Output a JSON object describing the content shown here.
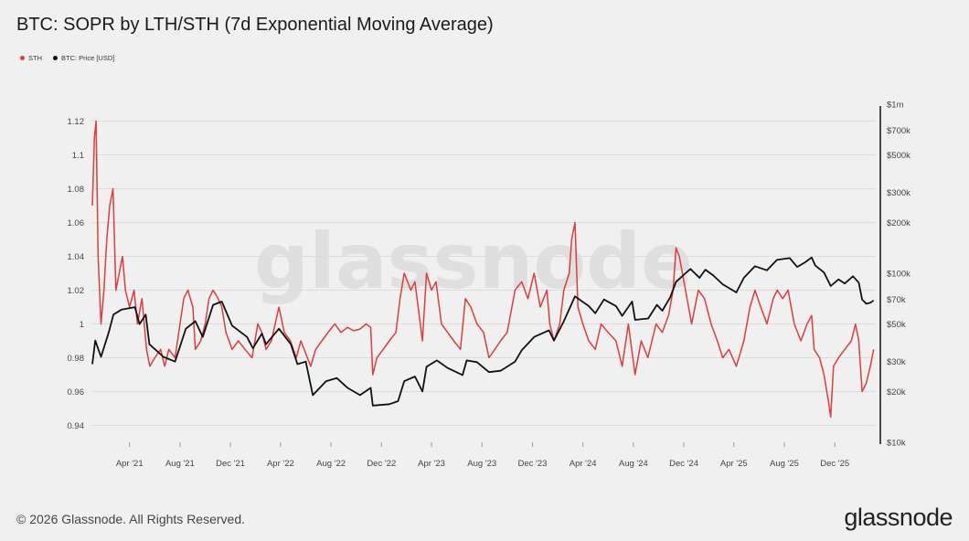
{
  "title": "BTC: SOPR by LTH/STH (7d Exponential Moving Average)",
  "legend": {
    "sth": "STH",
    "price": "BTC: Price [USD]"
  },
  "colors": {
    "sth": "#e03c3c",
    "price": "#111111",
    "grid": "#dcdcdc",
    "background": "#f0f0f0"
  },
  "watermark": "glassnode",
  "footer": "© 2026 Glassnode. All Rights Reserved.",
  "brand": "glassnode",
  "chart_data": {
    "type": "line",
    "y_left": {
      "ticks": [
        "0.94",
        "0.96",
        "0.98",
        "1",
        "1.02",
        "1.04",
        "1.06",
        "1.08",
        "1.1",
        "1.12"
      ],
      "range": [
        0.93,
        1.13
      ]
    },
    "y_right": {
      "scale": "log",
      "ticks": [
        {
          "value": 1000000,
          "label": "$1m"
        },
        {
          "value": 700000,
          "label": "$700k"
        },
        {
          "value": 500000,
          "label": "$500k"
        },
        {
          "value": 300000,
          "label": "$300k"
        },
        {
          "value": 200000,
          "label": "$200k"
        },
        {
          "value": 100000,
          "label": "$100k"
        },
        {
          "value": 70000,
          "label": "$70k"
        },
        {
          "value": 50000,
          "label": "$50k"
        },
        {
          "value": 30000,
          "label": "$30k"
        },
        {
          "value": 20000,
          "label": "$20k"
        },
        {
          "value": 10000,
          "label": "$10k"
        }
      ],
      "range": [
        10000,
        1000000
      ]
    },
    "x": {
      "range": [
        "2021-01-01",
        "2026-03-10"
      ],
      "ticks": [
        {
          "date": "2021-04-01",
          "label": "Apr '21"
        },
        {
          "date": "2021-08-01",
          "label": "Aug '21"
        },
        {
          "date": "2021-12-01",
          "label": "Dec '21"
        },
        {
          "date": "2022-04-01",
          "label": "Apr '22"
        },
        {
          "date": "2022-08-01",
          "label": "Aug '22"
        },
        {
          "date": "2022-12-01",
          "label": "Dec '22"
        },
        {
          "date": "2023-04-01",
          "label": "Apr '23"
        },
        {
          "date": "2023-08-01",
          "label": "Aug '23"
        },
        {
          "date": "2023-12-01",
          "label": "Dec '23"
        },
        {
          "date": "2024-04-01",
          "label": "Apr '24"
        },
        {
          "date": "2024-08-01",
          "label": "Aug '24"
        },
        {
          "date": "2024-12-01",
          "label": "Dec '24"
        },
        {
          "date": "2025-04-01",
          "label": "Apr '25"
        },
        {
          "date": "2025-08-01",
          "label": "Aug '25"
        },
        {
          "date": "2025-12-01",
          "label": "Dec '25"
        }
      ]
    },
    "series": [
      {
        "name": "STH",
        "axis": "left",
        "points": [
          [
            "2021-01-01",
            1.07
          ],
          [
            "2021-01-06",
            1.11
          ],
          [
            "2021-01-10",
            1.12
          ],
          [
            "2021-01-15",
            1.04
          ],
          [
            "2021-01-22",
            1.0
          ],
          [
            "2021-01-29",
            1.02
          ],
          [
            "2021-02-05",
            1.05
          ],
          [
            "2021-02-12",
            1.07
          ],
          [
            "2021-02-20",
            1.08
          ],
          [
            "2021-02-27",
            1.02
          ],
          [
            "2021-03-07",
            1.03
          ],
          [
            "2021-03-15",
            1.04
          ],
          [
            "2021-03-22",
            1.02
          ],
          [
            "2021-04-01",
            1.01
          ],
          [
            "2021-04-12",
            1.02
          ],
          [
            "2021-04-20",
            1.0
          ],
          [
            "2021-05-01",
            1.015
          ],
          [
            "2021-05-12",
            0.985
          ],
          [
            "2021-05-20",
            0.975
          ],
          [
            "2021-06-01",
            0.98
          ],
          [
            "2021-06-15",
            0.985
          ],
          [
            "2021-06-25",
            0.975
          ],
          [
            "2021-07-05",
            0.985
          ],
          [
            "2021-07-20",
            0.98
          ],
          [
            "2021-08-01",
            1.0
          ],
          [
            "2021-08-10",
            1.015
          ],
          [
            "2021-08-20",
            1.02
          ],
          [
            "2021-09-01",
            1.01
          ],
          [
            "2021-09-07",
            0.985
          ],
          [
            "2021-09-20",
            0.99
          ],
          [
            "2021-10-01",
            1.0
          ],
          [
            "2021-10-10",
            1.015
          ],
          [
            "2021-10-20",
            1.02
          ],
          [
            "2021-11-01",
            1.015
          ],
          [
            "2021-11-10",
            1.01
          ],
          [
            "2021-11-20",
            0.995
          ],
          [
            "2021-12-05",
            0.985
          ],
          [
            "2021-12-20",
            0.99
          ],
          [
            "2022-01-05",
            0.985
          ],
          [
            "2022-01-22",
            0.98
          ],
          [
            "2022-02-05",
            1.0
          ],
          [
            "2022-02-15",
            0.995
          ],
          [
            "2022-02-25",
            0.985
          ],
          [
            "2022-03-10",
            0.99
          ],
          [
            "2022-03-28",
            1.01
          ],
          [
            "2022-04-10",
            0.995
          ],
          [
            "2022-04-25",
            0.99
          ],
          [
            "2022-05-09",
            0.98
          ],
          [
            "2022-05-20",
            0.99
          ],
          [
            "2022-06-13",
            0.975
          ],
          [
            "2022-06-25",
            0.985
          ],
          [
            "2022-07-10",
            0.99
          ],
          [
            "2022-07-25",
            0.995
          ],
          [
            "2022-08-10",
            1.0
          ],
          [
            "2022-08-25",
            0.995
          ],
          [
            "2022-09-10",
            0.998
          ],
          [
            "2022-09-25",
            0.996
          ],
          [
            "2022-10-10",
            0.997
          ],
          [
            "2022-10-25",
            1.0
          ],
          [
            "2022-11-05",
            0.998
          ],
          [
            "2022-11-10",
            0.97
          ],
          [
            "2022-11-20",
            0.98
          ],
          [
            "2022-12-05",
            0.985
          ],
          [
            "2022-12-20",
            0.99
          ],
          [
            "2023-01-05",
            0.995
          ],
          [
            "2023-01-15",
            1.015
          ],
          [
            "2023-01-25",
            1.03
          ],
          [
            "2023-02-10",
            1.02
          ],
          [
            "2023-02-20",
            1.025
          ],
          [
            "2023-03-10",
            0.99
          ],
          [
            "2023-03-20",
            1.03
          ],
          [
            "2023-04-01",
            1.02
          ],
          [
            "2023-04-12",
            1.025
          ],
          [
            "2023-04-25",
            1.0
          ],
          [
            "2023-05-10",
            0.995
          ],
          [
            "2023-05-25",
            0.99
          ],
          [
            "2023-06-10",
            0.985
          ],
          [
            "2023-06-22",
            1.015
          ],
          [
            "2023-07-05",
            1.01
          ],
          [
            "2023-07-20",
            1.0
          ],
          [
            "2023-08-05",
            0.995
          ],
          [
            "2023-08-18",
            0.98
          ],
          [
            "2023-09-01",
            0.985
          ],
          [
            "2023-09-15",
            0.99
          ],
          [
            "2023-10-01",
            0.995
          ],
          [
            "2023-10-20",
            1.02
          ],
          [
            "2023-11-05",
            1.025
          ],
          [
            "2023-11-20",
            1.015
          ],
          [
            "2023-12-05",
            1.03
          ],
          [
            "2023-12-20",
            1.01
          ],
          [
            "2024-01-05",
            1.02
          ],
          [
            "2024-01-12",
            1.0
          ],
          [
            "2024-01-22",
            0.99
          ],
          [
            "2024-02-05",
            1.0
          ],
          [
            "2024-02-15",
            1.02
          ],
          [
            "2024-02-28",
            1.03
          ],
          [
            "2024-03-05",
            1.05
          ],
          [
            "2024-03-13",
            1.06
          ],
          [
            "2024-03-20",
            1.01
          ],
          [
            "2024-04-01",
            1.0
          ],
          [
            "2024-04-15",
            0.99
          ],
          [
            "2024-05-01",
            0.985
          ],
          [
            "2024-05-15",
            1.0
          ],
          [
            "2024-06-01",
            0.995
          ],
          [
            "2024-06-20",
            0.99
          ],
          [
            "2024-07-05",
            0.975
          ],
          [
            "2024-07-20",
            1.0
          ],
          [
            "2024-08-05",
            0.97
          ],
          [
            "2024-08-20",
            0.99
          ],
          [
            "2024-09-05",
            0.98
          ],
          [
            "2024-09-25",
            1.0
          ],
          [
            "2024-10-10",
            0.995
          ],
          [
            "2024-10-25",
            1.005
          ],
          [
            "2024-11-05",
            1.02
          ],
          [
            "2024-11-12",
            1.045
          ],
          [
            "2024-11-20",
            1.04
          ],
          [
            "2024-12-05",
            1.02
          ],
          [
            "2024-12-20",
            1.0
          ],
          [
            "2025-01-05",
            1.02
          ],
          [
            "2025-01-20",
            1.015
          ],
          [
            "2025-02-05",
            1.0
          ],
          [
            "2025-02-20",
            0.99
          ],
          [
            "2025-03-05",
            0.98
          ],
          [
            "2025-03-20",
            0.985
          ],
          [
            "2025-04-07",
            0.975
          ],
          [
            "2025-04-25",
            0.99
          ],
          [
            "2025-05-10",
            1.01
          ],
          [
            "2025-05-22",
            1.02
          ],
          [
            "2025-06-05",
            1.01
          ],
          [
            "2025-06-20",
            1.0
          ],
          [
            "2025-07-05",
            1.015
          ],
          [
            "2025-07-15",
            1.02
          ],
          [
            "2025-07-28",
            1.015
          ],
          [
            "2025-08-10",
            1.02
          ],
          [
            "2025-08-25",
            1.0
          ],
          [
            "2025-09-10",
            0.99
          ],
          [
            "2025-09-25",
            1.0
          ],
          [
            "2025-10-06",
            1.005
          ],
          [
            "2025-10-12",
            0.985
          ],
          [
            "2025-10-25",
            0.98
          ],
          [
            "2025-11-05",
            0.97
          ],
          [
            "2025-11-15",
            0.955
          ],
          [
            "2025-11-21",
            0.945
          ],
          [
            "2025-11-28",
            0.975
          ],
          [
            "2025-12-10",
            0.98
          ],
          [
            "2025-12-25",
            0.985
          ],
          [
            "2026-01-10",
            0.99
          ],
          [
            "2026-01-20",
            1.0
          ],
          [
            "2026-01-28",
            0.99
          ],
          [
            "2026-02-05",
            0.96
          ],
          [
            "2026-02-15",
            0.965
          ],
          [
            "2026-02-25",
            0.975
          ],
          [
            "2026-03-05",
            0.985
          ]
        ]
      },
      {
        "name": "BTC: Price [USD]",
        "axis": "right",
        "points": [
          [
            "2021-01-01",
            29000
          ],
          [
            "2021-01-08",
            40000
          ],
          [
            "2021-01-22",
            32000
          ],
          [
            "2021-02-10",
            45000
          ],
          [
            "2021-02-21",
            57000
          ],
          [
            "2021-03-13",
            61000
          ],
          [
            "2021-04-14",
            63000
          ],
          [
            "2021-04-25",
            50000
          ],
          [
            "2021-05-10",
            57000
          ],
          [
            "2021-05-19",
            38000
          ],
          [
            "2021-06-22",
            32000
          ],
          [
            "2021-07-20",
            30000
          ],
          [
            "2021-08-15",
            47000
          ],
          [
            "2021-09-07",
            52000
          ],
          [
            "2021-09-25",
            42000
          ],
          [
            "2021-10-20",
            65000
          ],
          [
            "2021-11-10",
            68000
          ],
          [
            "2021-12-05",
            49000
          ],
          [
            "2022-01-10",
            42000
          ],
          [
            "2022-01-24",
            36000
          ],
          [
            "2022-02-15",
            44000
          ],
          [
            "2022-02-25",
            38000
          ],
          [
            "2022-03-28",
            47000
          ],
          [
            "2022-04-26",
            38000
          ],
          [
            "2022-05-12",
            29000
          ],
          [
            "2022-06-01",
            30000
          ],
          [
            "2022-06-18",
            19000
          ],
          [
            "2022-07-20",
            23000
          ],
          [
            "2022-08-15",
            24000
          ],
          [
            "2022-09-10",
            21000
          ],
          [
            "2022-10-10",
            19000
          ],
          [
            "2022-11-05",
            21000
          ],
          [
            "2022-11-10",
            16500
          ],
          [
            "2022-12-20",
            16800
          ],
          [
            "2023-01-10",
            17500
          ],
          [
            "2023-01-25",
            23000
          ],
          [
            "2023-02-20",
            24500
          ],
          [
            "2023-03-10",
            20000
          ],
          [
            "2023-03-20",
            28000
          ],
          [
            "2023-04-14",
            30500
          ],
          [
            "2023-05-10",
            27500
          ],
          [
            "2023-06-15",
            25000
          ],
          [
            "2023-06-25",
            30500
          ],
          [
            "2023-07-20",
            29800
          ],
          [
            "2023-08-18",
            26000
          ],
          [
            "2023-09-15",
            26500
          ],
          [
            "2023-10-20",
            30000
          ],
          [
            "2023-11-05",
            35000
          ],
          [
            "2023-12-05",
            42000
          ],
          [
            "2024-01-10",
            46000
          ],
          [
            "2024-01-22",
            40000
          ],
          [
            "2024-02-15",
            52000
          ],
          [
            "2024-03-13",
            73000
          ],
          [
            "2024-04-15",
            64000
          ],
          [
            "2024-05-01",
            58000
          ],
          [
            "2024-05-22",
            70000
          ],
          [
            "2024-06-20",
            64000
          ],
          [
            "2024-07-05",
            56000
          ],
          [
            "2024-07-29",
            68000
          ],
          [
            "2024-08-05",
            53000
          ],
          [
            "2024-09-06",
            54000
          ],
          [
            "2024-09-27",
            65000
          ],
          [
            "2024-10-10",
            60000
          ],
          [
            "2024-10-29",
            72000
          ],
          [
            "2024-11-12",
            89000
          ],
          [
            "2024-12-05",
            100000
          ],
          [
            "2024-12-17",
            106000
          ],
          [
            "2025-01-08",
            94000
          ],
          [
            "2025-01-22",
            105000
          ],
          [
            "2025-02-10",
            97000
          ],
          [
            "2025-03-05",
            86000
          ],
          [
            "2025-04-07",
            77000
          ],
          [
            "2025-04-25",
            94000
          ],
          [
            "2025-05-22",
            110000
          ],
          [
            "2025-06-20",
            104000
          ],
          [
            "2025-07-14",
            120000
          ],
          [
            "2025-08-14",
            123000
          ],
          [
            "2025-09-01",
            109000
          ],
          [
            "2025-09-20",
            116000
          ],
          [
            "2025-10-06",
            124000
          ],
          [
            "2025-10-15",
            111000
          ],
          [
            "2025-11-05",
            101000
          ],
          [
            "2025-11-21",
            84000
          ],
          [
            "2025-12-10",
            92000
          ],
          [
            "2025-12-25",
            87000
          ],
          [
            "2026-01-14",
            96000
          ],
          [
            "2026-01-28",
            88000
          ],
          [
            "2026-02-05",
            70000
          ],
          [
            "2026-02-15",
            66000
          ],
          [
            "2026-02-25",
            67000
          ],
          [
            "2026-03-05",
            69000
          ]
        ]
      }
    ]
  }
}
